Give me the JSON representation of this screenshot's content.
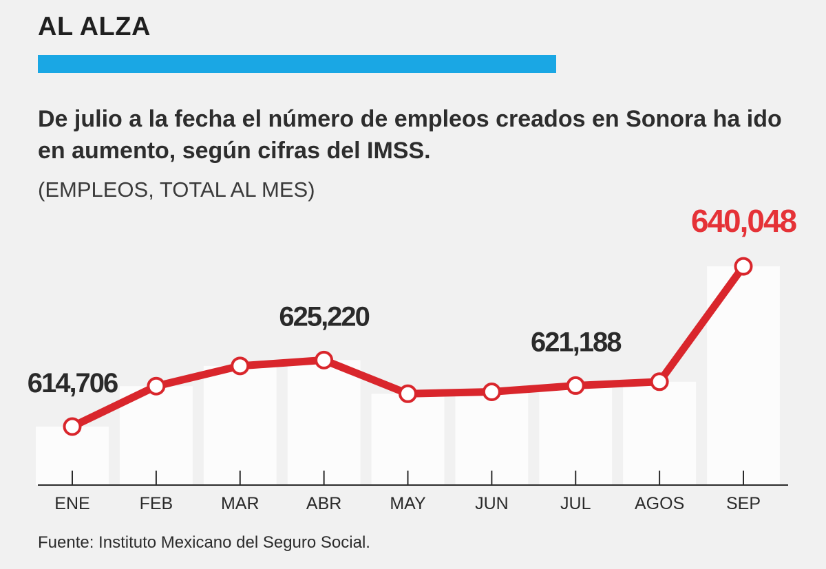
{
  "header": {
    "title": "AL ALZA",
    "subtitle": "De julio a la fecha el número de empleos creados en Sonora ha ido en aumento, según cifras del IMSS.",
    "unit_note": "(EMPLEOS, TOTAL AL MES)"
  },
  "footer": {
    "source": "Fuente: Instituto Mexicano del Seguro Social."
  },
  "colors": {
    "accent": "#1aa7e4",
    "line": "#d9262c",
    "highlight": "#e53237",
    "background": "#f1f1f1"
  },
  "chart_data": {
    "type": "line",
    "categories": [
      "ENE",
      "FEB",
      "MAR",
      "ABR",
      "MAY",
      "JUN",
      "JUL",
      "AGOS",
      "SEP"
    ],
    "series": [
      {
        "values": [
          614706,
          621100,
          624300,
          625220,
          619900,
          620200,
          621188,
          621800,
          640048
        ]
      }
    ],
    "data_labels": [
      {
        "category": "ENE",
        "text": "614,706"
      },
      {
        "category": "ABR",
        "text": "625,220"
      },
      {
        "category": "JUL",
        "text": "621,188"
      },
      {
        "category": "SEP",
        "text": "640,048",
        "highlight": true
      }
    ],
    "ylim": [
      606000,
      643000
    ],
    "grid": false,
    "legend": "none"
  }
}
